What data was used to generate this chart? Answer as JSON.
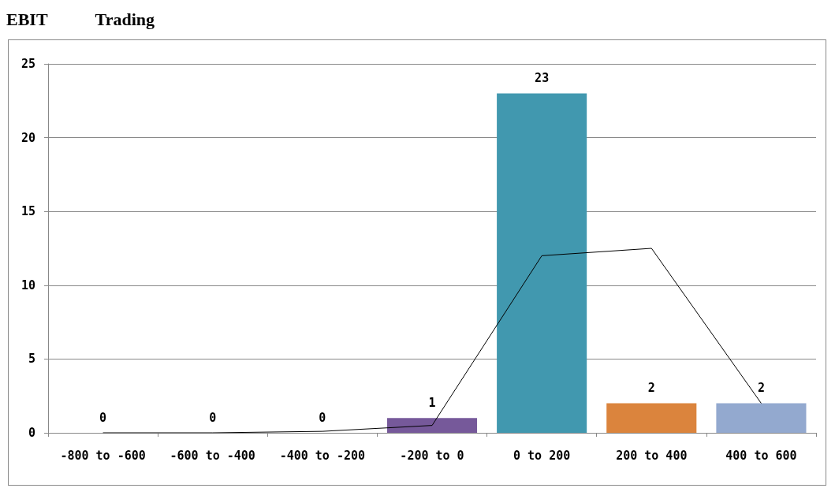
{
  "chart_data": {
    "type": "bar",
    "title": "EBIT",
    "subtitle": "Trading",
    "categories": [
      "-800 to -600",
      "-600 to -400",
      "-400 to -200",
      "-200 to 0",
      "0 to 200",
      "200 to 400",
      "400 to 600"
    ],
    "series": [
      {
        "values": [
          0,
          0,
          0,
          1,
          23,
          2,
          2
        ],
        "value_labels": [
          "0",
          "0",
          "0",
          "1",
          "23",
          "2",
          "2"
        ],
        "colors": [
          "#4572a7",
          "#aa4643",
          "#89a54e",
          "#76599a",
          "#4198af",
          "#db843d",
          "#93a9cf"
        ]
      },
      {
        "type": "line",
        "color": "#000000",
        "values": [
          0,
          0,
          0.1,
          0.5,
          12,
          12.5,
          2
        ]
      }
    ],
    "ylim": [
      0,
      25
    ],
    "yticks": [
      0,
      5,
      10,
      15,
      20,
      25
    ],
    "grid": "y",
    "marker": "none"
  }
}
